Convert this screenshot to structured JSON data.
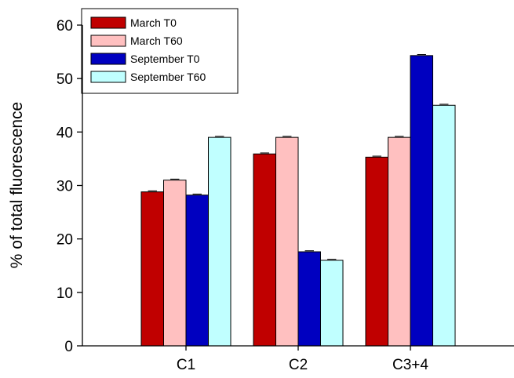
{
  "chart_data": {
    "type": "bar",
    "title": "",
    "xlabel": "",
    "ylabel": "% of total fluorescence",
    "ylim": [
      0,
      60
    ],
    "yticks": [
      "0",
      "10",
      "20",
      "30",
      "40",
      "50",
      "60"
    ],
    "categories": [
      "C1",
      "C2",
      "C3+4"
    ],
    "series": [
      {
        "name": "March T0",
        "color": "#c00000",
        "values": [
          28.8,
          35.9,
          35.3
        ]
      },
      {
        "name": "March T60",
        "color": "#ffc0c0",
        "values": [
          31.0,
          39.0,
          39.0
        ]
      },
      {
        "name": "September T0",
        "color": "#0000c0",
        "values": [
          28.2,
          17.6,
          54.3
        ]
      },
      {
        "name": "September T60",
        "color": "#c0ffff",
        "values": [
          39.0,
          16.0,
          45.0
        ]
      }
    ],
    "grid": false,
    "legend_position": "top-left"
  }
}
